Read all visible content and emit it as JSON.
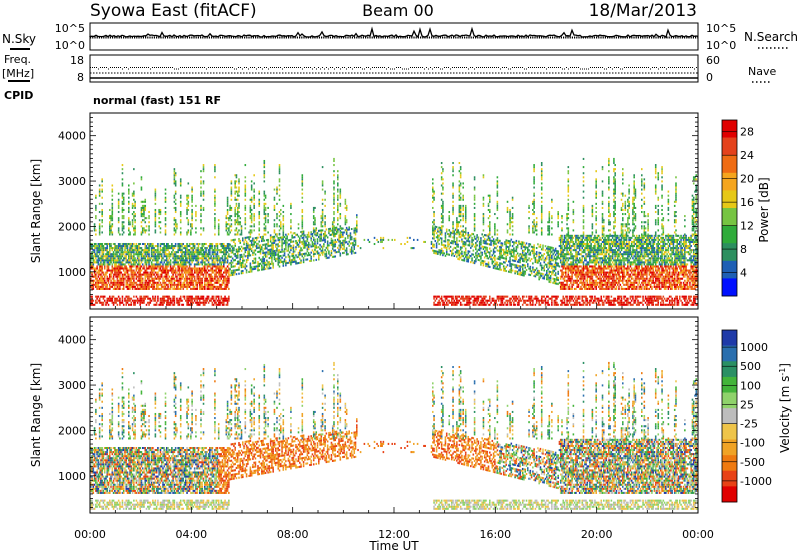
{
  "header": {
    "station": "Syowa East (fitACF)",
    "beam": "Beam 00",
    "date": "18/Mar/2013"
  },
  "left_labels": {
    "nsky": "N.Sky",
    "freq": "Freq.",
    "freq_unit": "[MHz]",
    "cpid": "CPID"
  },
  "right_labels": {
    "nsearch": "N.Search",
    "nave": "Nave"
  },
  "nsky_axis": {
    "top": "10^5",
    "bottom": "10^0"
  },
  "freq_axis": {
    "top": "18",
    "bottom": "8"
  },
  "nave_axis": {
    "top": "60",
    "bottom": "0"
  },
  "cpid_text": "normal (fast) 151 RF",
  "colors": {
    "power_scale": [
      "#0010ff",
      "#1e5fb4",
      "#2c8f5f",
      "#2fab3a",
      "#76c442",
      "#e6c817",
      "#f5a51e",
      "#ef6c14",
      "#e4421c",
      "#e00000"
    ],
    "velocity_scale": [
      "#1f3aa8",
      "#2a6fae",
      "#2b9064",
      "#43b43a",
      "#8fd26b",
      "#bdbdbd",
      "#eec44a",
      "#f0a326",
      "#ef7a10",
      "#e84216",
      "#e00000"
    ]
  },
  "chart_data": [
    {
      "type": "heatmap",
      "title": "Power",
      "ylabel": "Slant Range [km]",
      "xlabel": "",
      "ylim": [
        180,
        4500
      ],
      "xlim": [
        0,
        24
      ],
      "yticks": [
        "1000",
        "2000",
        "3000",
        "4000"
      ],
      "xticks": [],
      "colorbar": {
        "label": "Power [dB]",
        "ticks": [
          "4",
          "8",
          "12",
          "16",
          "20",
          "24",
          "28"
        ],
        "range": [
          0,
          30
        ]
      }
    },
    {
      "type": "heatmap",
      "title": "Velocity",
      "ylabel": "Slant Range [km]",
      "xlabel": "Time UT",
      "ylim": [
        180,
        4500
      ],
      "xlim": [
        0,
        24
      ],
      "yticks": [
        "1000",
        "2000",
        "3000",
        "4000"
      ],
      "xticks": [
        "00:00",
        "04:00",
        "08:00",
        "12:00",
        "16:00",
        "20:00",
        "00:00"
      ],
      "colorbar": {
        "label": "Velocity [m s^-1]",
        "ticks": [
          "1000",
          "500",
          "100",
          "25",
          "-25",
          "-100",
          "-500",
          "-1000"
        ]
      }
    }
  ]
}
